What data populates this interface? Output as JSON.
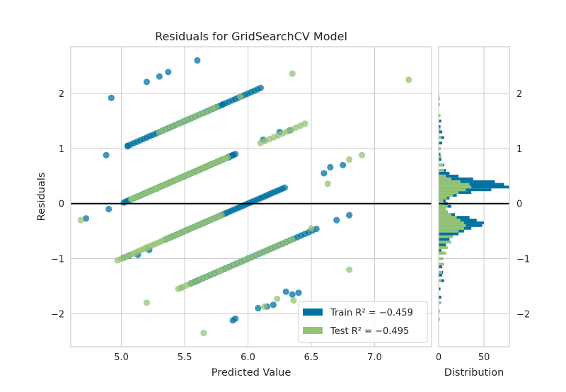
{
  "chart_data": {
    "type": "scatter",
    "title": "Residuals for GridSearchCV Model",
    "xlabel": "Predicted Value",
    "ylabel": "Residuals",
    "xlim": [
      4.6,
      7.45
    ],
    "ylim": [
      -2.6,
      2.85
    ],
    "xticks": [
      "5.0",
      "5.5",
      "6.0",
      "6.5",
      "7.0"
    ],
    "yticks": [
      "−2",
      "−1",
      "0",
      "1",
      "2"
    ],
    "grid": true,
    "zero_line": 0,
    "legend_position": "bottom-right",
    "colors": {
      "train": "#0072a1",
      "test": "#94c375",
      "zero_line": "#000000"
    },
    "series": [
      {
        "name": "Train",
        "legend_label": "Train R² = −0.459",
        "bands": [
          {
            "x_from": 5.02,
            "x_to": 5.9,
            "offset": -5.0,
            "step": 0.016
          },
          {
            "x_from": 5.35,
            "x_to": 6.3,
            "offset": -6.0,
            "step": 0.02
          },
          {
            "x_from": 5.05,
            "x_to": 6.1,
            "offset": -4.0,
            "step": 0.025
          },
          {
            "x_from": 5.55,
            "x_to": 6.55,
            "offset": -7.0,
            "step": 0.03
          }
        ],
        "points": [
          [
            5.6,
            2.6
          ],
          [
            5.37,
            2.39
          ],
          [
            5.3,
            2.31
          ],
          [
            5.2,
            2.21
          ],
          [
            4.92,
            1.92
          ],
          [
            5.05,
            1.04
          ],
          [
            4.88,
            0.88
          ],
          [
            6.6,
            0.55
          ],
          [
            6.65,
            0.66
          ],
          [
            6.75,
            0.7
          ],
          [
            4.72,
            -0.27
          ],
          [
            4.9,
            -0.1
          ],
          [
            5.02,
            -0.98
          ],
          [
            5.06,
            -0.95
          ],
          [
            5.13,
            -0.93
          ],
          [
            5.22,
            -0.84
          ],
          [
            6.7,
            -0.3
          ],
          [
            6.8,
            -0.21
          ],
          [
            6.3,
            -1.6
          ],
          [
            6.35,
            -1.65
          ],
          [
            6.4,
            -1.62
          ],
          [
            6.2,
            -1.84
          ],
          [
            6.15,
            -1.87
          ],
          [
            6.08,
            -1.9
          ],
          [
            5.88,
            -2.12
          ],
          [
            5.9,
            -2.09
          ],
          [
            5.6,
            -1.4
          ],
          [
            5.58,
            -1.42
          ],
          [
            6.33,
            1.33
          ],
          [
            6.25,
            1.3
          ],
          [
            6.12,
            1.16
          ],
          [
            5.85,
            0.84
          ],
          [
            5.88,
            0.88
          ],
          [
            5.5,
            0.5
          ],
          [
            5.75,
            1.75
          ],
          [
            5.8,
            1.8
          ]
        ]
      },
      {
        "name": "Test",
        "legend_label": "Test R² = −0.495",
        "bands": [
          {
            "x_from": 5.08,
            "x_to": 5.85,
            "offset": -5.0,
            "step": 0.02
          },
          {
            "x_from": 5.0,
            "x_to": 5.8,
            "offset": -6.0,
            "step": 0.022
          },
          {
            "x_from": 5.3,
            "x_to": 5.75,
            "offset": -4.0,
            "step": 0.03
          },
          {
            "x_from": 5.45,
            "x_to": 6.35,
            "offset": -7.0,
            "step": 0.03
          },
          {
            "x_from": 6.1,
            "x_to": 6.45,
            "offset": -5.0,
            "step": 0.035
          }
        ],
        "points": [
          [
            6.35,
            2.36
          ],
          [
            7.27,
            2.25
          ],
          [
            5.94,
            1.94
          ],
          [
            4.68,
            -0.3
          ],
          [
            5.2,
            -1.8
          ],
          [
            6.8,
            -1.2
          ],
          [
            6.5,
            -0.45
          ],
          [
            5.65,
            -2.35
          ],
          [
            6.13,
            -1.87
          ],
          [
            6.23,
            -1.73
          ],
          [
            6.36,
            -1.76
          ],
          [
            6.63,
            0.36
          ],
          [
            6.9,
            0.88
          ],
          [
            5.82,
            0.82
          ],
          [
            5.28,
            0.27
          ],
          [
            5.44,
            0.44
          ],
          [
            5.08,
            0.08
          ],
          [
            5.2,
            -0.8
          ],
          [
            6.8,
            0.8
          ],
          [
            4.97,
            -1.03
          ],
          [
            5.47,
            -1.53
          ],
          [
            5.78,
            -1.22
          ]
        ]
      }
    ],
    "distribution": {
      "xlabel": "Distribution",
      "xticks": [
        "0",
        "50"
      ],
      "xlim": [
        0,
        78
      ],
      "bin_width": 0.05,
      "train_counts": [
        [
          -2.1,
          1
        ],
        [
          -1.95,
          1
        ],
        [
          -1.7,
          3
        ],
        [
          -1.55,
          2
        ],
        [
          -1.4,
          6
        ],
        [
          -1.3,
          4
        ],
        [
          -1.25,
          5
        ],
        [
          -1.15,
          4
        ],
        [
          -1.1,
          3
        ],
        [
          -1.0,
          4
        ],
        [
          -0.9,
          6
        ],
        [
          -0.85,
          3
        ],
        [
          -0.75,
          8
        ],
        [
          -0.7,
          10
        ],
        [
          -0.65,
          12
        ],
        [
          -0.6,
          14
        ],
        [
          -0.55,
          22
        ],
        [
          -0.5,
          28
        ],
        [
          -0.45,
          36
        ],
        [
          -0.4,
          48
        ],
        [
          -0.35,
          50
        ],
        [
          -0.3,
          42
        ],
        [
          -0.25,
          34
        ],
        [
          -0.2,
          18
        ],
        [
          -0.15,
          10
        ],
        [
          -0.1,
          8
        ],
        [
          -0.05,
          14
        ],
        [
          0.0,
          10
        ],
        [
          0.05,
          8
        ],
        [
          0.1,
          12
        ],
        [
          0.15,
          20
        ],
        [
          0.2,
          36
        ],
        [
          0.25,
          58
        ],
        [
          0.3,
          78
        ],
        [
          0.35,
          72
        ],
        [
          0.4,
          62
        ],
        [
          0.45,
          38
        ],
        [
          0.5,
          22
        ],
        [
          0.55,
          12
        ],
        [
          0.6,
          8
        ],
        [
          0.7,
          6
        ],
        [
          0.8,
          3
        ],
        [
          0.9,
          2
        ],
        [
          1.0,
          2
        ],
        [
          1.1,
          4
        ],
        [
          1.2,
          6
        ],
        [
          1.3,
          4
        ],
        [
          1.4,
          2
        ],
        [
          1.5,
          3
        ],
        [
          1.6,
          1
        ],
        [
          1.8,
          1
        ],
        [
          1.9,
          1
        ]
      ],
      "test_counts": [
        [
          -1.8,
          3
        ],
        [
          -1.4,
          3
        ],
        [
          -1.25,
          4
        ],
        [
          -1.1,
          6
        ],
        [
          -1.0,
          5
        ],
        [
          -0.9,
          8
        ],
        [
          -0.8,
          10
        ],
        [
          -0.7,
          14
        ],
        [
          -0.6,
          16
        ],
        [
          -0.5,
          22
        ],
        [
          -0.45,
          28
        ],
        [
          -0.4,
          30
        ],
        [
          -0.35,
          28
        ],
        [
          -0.3,
          24
        ],
        [
          -0.25,
          20
        ],
        [
          -0.2,
          14
        ],
        [
          -0.15,
          10
        ],
        [
          -0.1,
          8
        ],
        [
          -0.05,
          10
        ],
        [
          0.0,
          6
        ],
        [
          0.05,
          5
        ],
        [
          0.1,
          9
        ],
        [
          0.15,
          16
        ],
        [
          0.2,
          22
        ],
        [
          0.25,
          30
        ],
        [
          0.3,
          36
        ],
        [
          0.35,
          34
        ],
        [
          0.4,
          24
        ],
        [
          0.45,
          14
        ],
        [
          0.5,
          8
        ],
        [
          0.6,
          6
        ],
        [
          0.7,
          5
        ],
        [
          0.85,
          3
        ],
        [
          1.0,
          2
        ],
        [
          1.2,
          3
        ],
        [
          1.35,
          2
        ],
        [
          1.6,
          2
        ],
        [
          1.95,
          1
        ]
      ]
    }
  }
}
